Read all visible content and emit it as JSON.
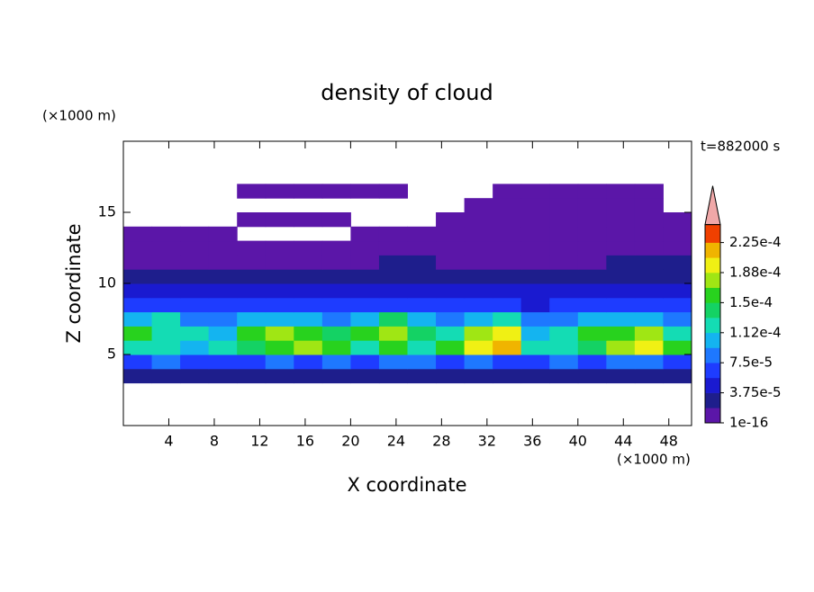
{
  "chart_data": {
    "type": "contour",
    "title": "density of cloud",
    "xlabel": "X coordinate",
    "ylabel": "Z coordinate",
    "x_unit": "(×1000 m)",
    "y_unit": "(×1000 m)",
    "time_label": "t=882000 s",
    "xlim": [
      0,
      50
    ],
    "xticks": [
      4,
      8,
      12,
      16,
      20,
      24,
      28,
      32,
      36,
      40,
      44,
      48
    ],
    "ylim": [
      0,
      20
    ],
    "yticks": [
      5,
      10,
      15
    ],
    "levels": [
      1e-16,
      1.875e-05,
      3.75e-05,
      5.625e-05,
      7.5e-05,
      9.375e-05,
      0.0001125,
      0.00013125,
      0.00015,
      0.00016875,
      0.0001875,
      0.00020625,
      0.000225
    ],
    "colors": [
      "#5b16a8",
      "#1e1e8c",
      "#1a1ad0",
      "#1e3cff",
      "#1e78ff",
      "#14b4f0",
      "#14dcb4",
      "#14d264",
      "#28d21e",
      "#a0e614",
      "#f0f014",
      "#f0b400",
      "#f04000"
    ],
    "extend_color": "#f0a8a8",
    "colorbar_ticks": [
      {
        "value": 1e-16,
        "label": "1e-16"
      },
      {
        "value": 3.75e-05,
        "label": "3.75e-5"
      },
      {
        "value": 7.5e-05,
        "label": "7.5e-5"
      },
      {
        "value": 0.0001125,
        "label": "1.12e-4"
      },
      {
        "value": 0.00015,
        "label": "1.5e-4"
      },
      {
        "value": 0.0001875,
        "label": "1.88e-4"
      },
      {
        "value": 0.000225,
        "label": "2.25e-4"
      }
    ],
    "x": [
      1.25,
      3.75,
      6.25,
      8.75,
      11.25,
      13.75,
      16.25,
      18.75,
      21.25,
      23.75,
      26.25,
      28.75,
      31.25,
      33.75,
      36.25,
      38.75,
      41.25,
      43.75,
      46.25,
      48.75
    ],
    "z": [
      3.5,
      4.5,
      5.5,
      6.5,
      7.5,
      8.5,
      9.5,
      10.5,
      11.5,
      12.5,
      13.5,
      14.5,
      15.5,
      16.5
    ],
    "values": [
      [
        3e-05,
        2e-05,
        3e-05,
        3e-05,
        2e-05,
        3e-05,
        3e-05,
        2e-05,
        3e-05,
        3e-05,
        2e-05,
        3e-05,
        3e-05,
        2e-05,
        3e-05,
        3e-05,
        2e-05,
        3e-05,
        3e-05,
        2e-05
      ],
      [
        7e-05,
        8e-05,
        7e-05,
        6e-05,
        7e-05,
        8e-05,
        7e-05,
        8e-05,
        7e-05,
        9e-05,
        8e-05,
        7e-05,
        8e-05,
        7e-05,
        7e-05,
        8e-05,
        7e-05,
        8e-05,
        8e-05,
        7e-05
      ],
      [
        0.00013,
        0.00012,
        0.00011,
        0.00012,
        0.00014,
        0.00016,
        0.00017,
        0.00016,
        0.00013,
        0.00015,
        0.00012,
        0.00015,
        0.00019,
        0.00021,
        0.00012,
        0.00013,
        0.00014,
        0.00017,
        0.00019,
        0.00016
      ],
      [
        0.00015,
        0.00013,
        0.00012,
        0.00011,
        0.00015,
        0.00017,
        0.00015,
        0.00014,
        0.00015,
        0.00018,
        0.00014,
        0.00013,
        0.00018,
        0.00019,
        0.00011,
        0.00012,
        0.00015,
        0.00016,
        0.00018,
        0.00013
      ],
      [
        0.0001,
        0.00012,
        9e-05,
        8e-05,
        0.0001,
        0.00011,
        0.0001,
        9e-05,
        0.00011,
        0.00014,
        0.0001,
        9e-05,
        0.00011,
        0.00012,
        8e-05,
        9e-05,
        0.0001,
        0.0001,
        0.00011,
        9e-05
      ],
      [
        7e-05,
        7e-05,
        6e-05,
        6e-05,
        7e-05,
        7e-05,
        6e-05,
        6e-05,
        6e-05,
        7e-05,
        6e-05,
        6e-05,
        7e-05,
        7e-05,
        5e-05,
        6e-05,
        6e-05,
        6e-05,
        7e-05,
        6e-05
      ],
      [
        5e-05,
        4e-05,
        4e-05,
        4e-05,
        5e-05,
        5e-05,
        4e-05,
        4e-05,
        5e-05,
        5e-05,
        4e-05,
        4e-05,
        5e-05,
        5e-05,
        4e-05,
        4e-05,
        4e-05,
        5e-05,
        5e-05,
        4e-05
      ],
      [
        3e-05,
        2e-05,
        2e-05,
        3e-05,
        3e-05,
        3e-05,
        2e-05,
        3e-05,
        3e-05,
        3e-05,
        3e-05,
        3e-05,
        3e-05,
        2e-05,
        2e-05,
        3e-05,
        3e-05,
        3e-05,
        3e-05,
        3e-05
      ],
      [
        1e-05,
        1e-05,
        1e-05,
        1e-05,
        1e-05,
        1e-05,
        1e-05,
        1e-05,
        1e-05,
        2e-05,
        2e-05,
        1e-05,
        1e-05,
        1e-05,
        1e-05,
        1e-05,
        1e-05,
        2e-05,
        2e-05,
        2e-05
      ],
      [
        5e-06,
        5e-06,
        5e-06,
        5e-06,
        5e-06,
        5e-06,
        5e-06,
        5e-06,
        5e-06,
        5e-06,
        5e-06,
        5e-06,
        5e-06,
        5e-06,
        5e-06,
        5e-06,
        5e-06,
        5e-06,
        5e-06,
        5e-06
      ],
      [
        2e-06,
        2e-06,
        2e-06,
        2e-06,
        null,
        null,
        null,
        null,
        2e-06,
        2e-06,
        2e-06,
        2e-06,
        2e-06,
        2e-06,
        2e-06,
        2e-06,
        2e-06,
        2e-06,
        2e-06,
        2e-06
      ],
      [
        null,
        null,
        null,
        null,
        1e-06,
        1e-06,
        1e-06,
        1e-06,
        null,
        null,
        null,
        1e-06,
        1e-06,
        1e-06,
        1e-06,
        1e-06,
        1e-06,
        1e-06,
        1e-06,
        1e-06
      ],
      [
        null,
        null,
        null,
        null,
        null,
        null,
        null,
        null,
        null,
        null,
        null,
        null,
        1e-06,
        1e-06,
        1e-06,
        1e-06,
        1e-06,
        1e-06,
        1e-06,
        null
      ],
      [
        null,
        null,
        null,
        null,
        1e-06,
        1e-06,
        1e-06,
        1e-06,
        1e-06,
        1e-06,
        null,
        null,
        null,
        1e-06,
        1e-06,
        1e-06,
        1e-06,
        1e-06,
        1e-06,
        null
      ]
    ]
  }
}
